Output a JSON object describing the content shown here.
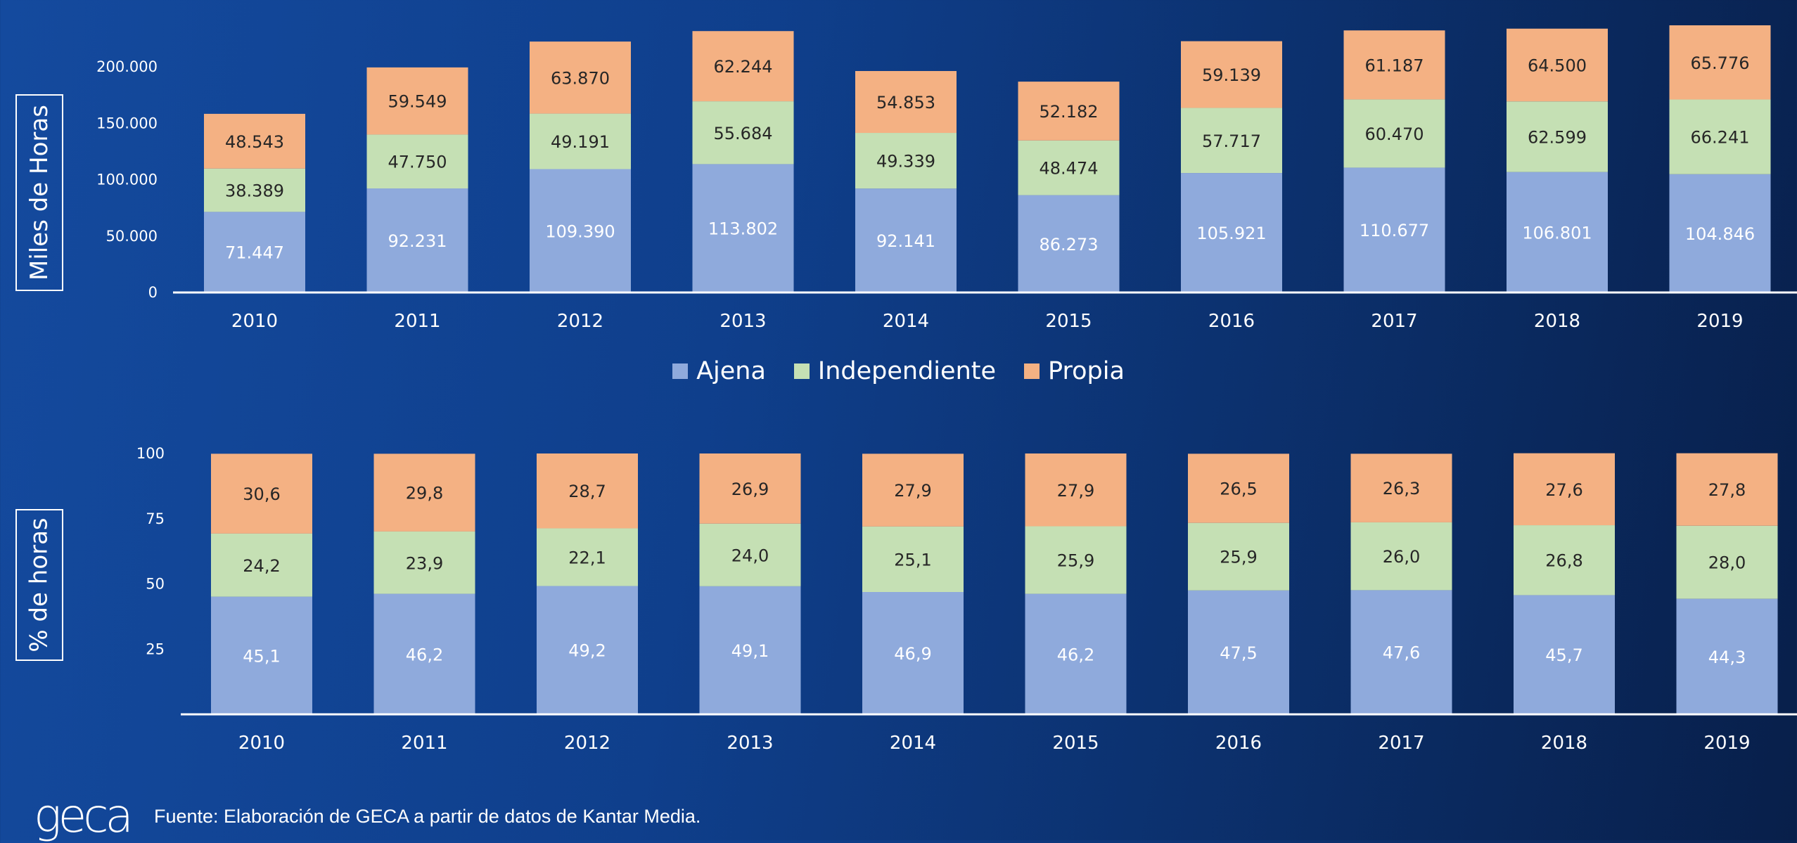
{
  "colors": {
    "ajena": "#8faadc",
    "independiente": "#c5e0b4",
    "propia": "#f4b183",
    "axis": "#ffffff",
    "text_light": "#ffffff",
    "text_dark": "#262626"
  },
  "legend": {
    "items": [
      {
        "label": "Ajena",
        "color": "#8faadc"
      },
      {
        "label": "Independiente",
        "color": "#c5e0b4"
      },
      {
        "label": "Propia",
        "color": "#f4b183"
      }
    ]
  },
  "footer": {
    "logo_text": "geca",
    "source": "Fuente: Elaboración de GECA a partir de datos de Kantar Media."
  },
  "chart_data": [
    {
      "type": "bar",
      "stacked": true,
      "ylabel": "Miles de Horas",
      "ylim": [
        0,
        230000
      ],
      "yticks": [
        0,
        50000,
        100000,
        150000,
        200000
      ],
      "ytick_labels": [
        "0",
        "50.000",
        "100.000",
        "150.000",
        "200.000"
      ],
      "categories": [
        "2010",
        "2011",
        "2012",
        "2013",
        "2014",
        "2015",
        "2016",
        "2017",
        "2018",
        "2019"
      ],
      "series": [
        {
          "name": "Ajena",
          "values": [
            71447,
            92231,
            109390,
            113802,
            92141,
            86273,
            105921,
            110677,
            106801,
            104846
          ],
          "labels": [
            "71.447",
            "92.231",
            "109.390",
            "113.802",
            "92.141",
            "86.273",
            "105.921",
            "110.677",
            "106.801",
            "104.846"
          ]
        },
        {
          "name": "Independiente",
          "values": [
            38389,
            47750,
            49191,
            55684,
            49339,
            48474,
            57717,
            60470,
            62599,
            66241
          ],
          "labels": [
            "38.389",
            "47.750",
            "49.191",
            "55.684",
            "49.339",
            "48.474",
            "57.717",
            "60.470",
            "62.599",
            "66.241"
          ]
        },
        {
          "name": "Propia",
          "values": [
            48543,
            59549,
            63870,
            62244,
            54853,
            52182,
            59139,
            61187,
            64500,
            65776
          ],
          "labels": [
            "48.543",
            "59.549",
            "63.870",
            "62.244",
            "54.853",
            "52.182",
            "59.139",
            "61.187",
            "64.500",
            "65.776"
          ]
        }
      ]
    },
    {
      "type": "bar",
      "stacked": true,
      "ylabel": "% de horas",
      "ylim": [
        0,
        100
      ],
      "yticks": [
        25,
        50,
        75,
        100
      ],
      "ytick_labels": [
        "25",
        "50",
        "75",
        "100"
      ],
      "categories": [
        "2010",
        "2011",
        "2012",
        "2013",
        "2014",
        "2015",
        "2016",
        "2017",
        "2018",
        "2019"
      ],
      "series": [
        {
          "name": "Ajena",
          "values": [
            45.1,
            46.2,
            49.2,
            49.1,
            46.9,
            46.2,
            47.5,
            47.6,
            45.7,
            44.3
          ],
          "labels": [
            "45,1",
            "46,2",
            "49,2",
            "49,1",
            "46,9",
            "46,2",
            "47,5",
            "47,6",
            "45,7",
            "44,3"
          ]
        },
        {
          "name": "Independiente",
          "values": [
            24.2,
            23.9,
            22.1,
            24.0,
            25.1,
            25.9,
            25.9,
            26.0,
            26.8,
            28.0
          ],
          "labels": [
            "24,2",
            "23,9",
            "22,1",
            "24,0",
            "25,1",
            "25,9",
            "25,9",
            "26,0",
            "26,8",
            "28,0"
          ]
        },
        {
          "name": "Propia",
          "values": [
            30.6,
            29.8,
            28.7,
            26.9,
            27.9,
            27.9,
            26.5,
            26.3,
            27.6,
            27.8
          ],
          "labels": [
            "30,6",
            "29,8",
            "28,7",
            "26,9",
            "27,9",
            "27,9",
            "26,5",
            "26,3",
            "27,6",
            "27,8"
          ]
        }
      ]
    }
  ]
}
